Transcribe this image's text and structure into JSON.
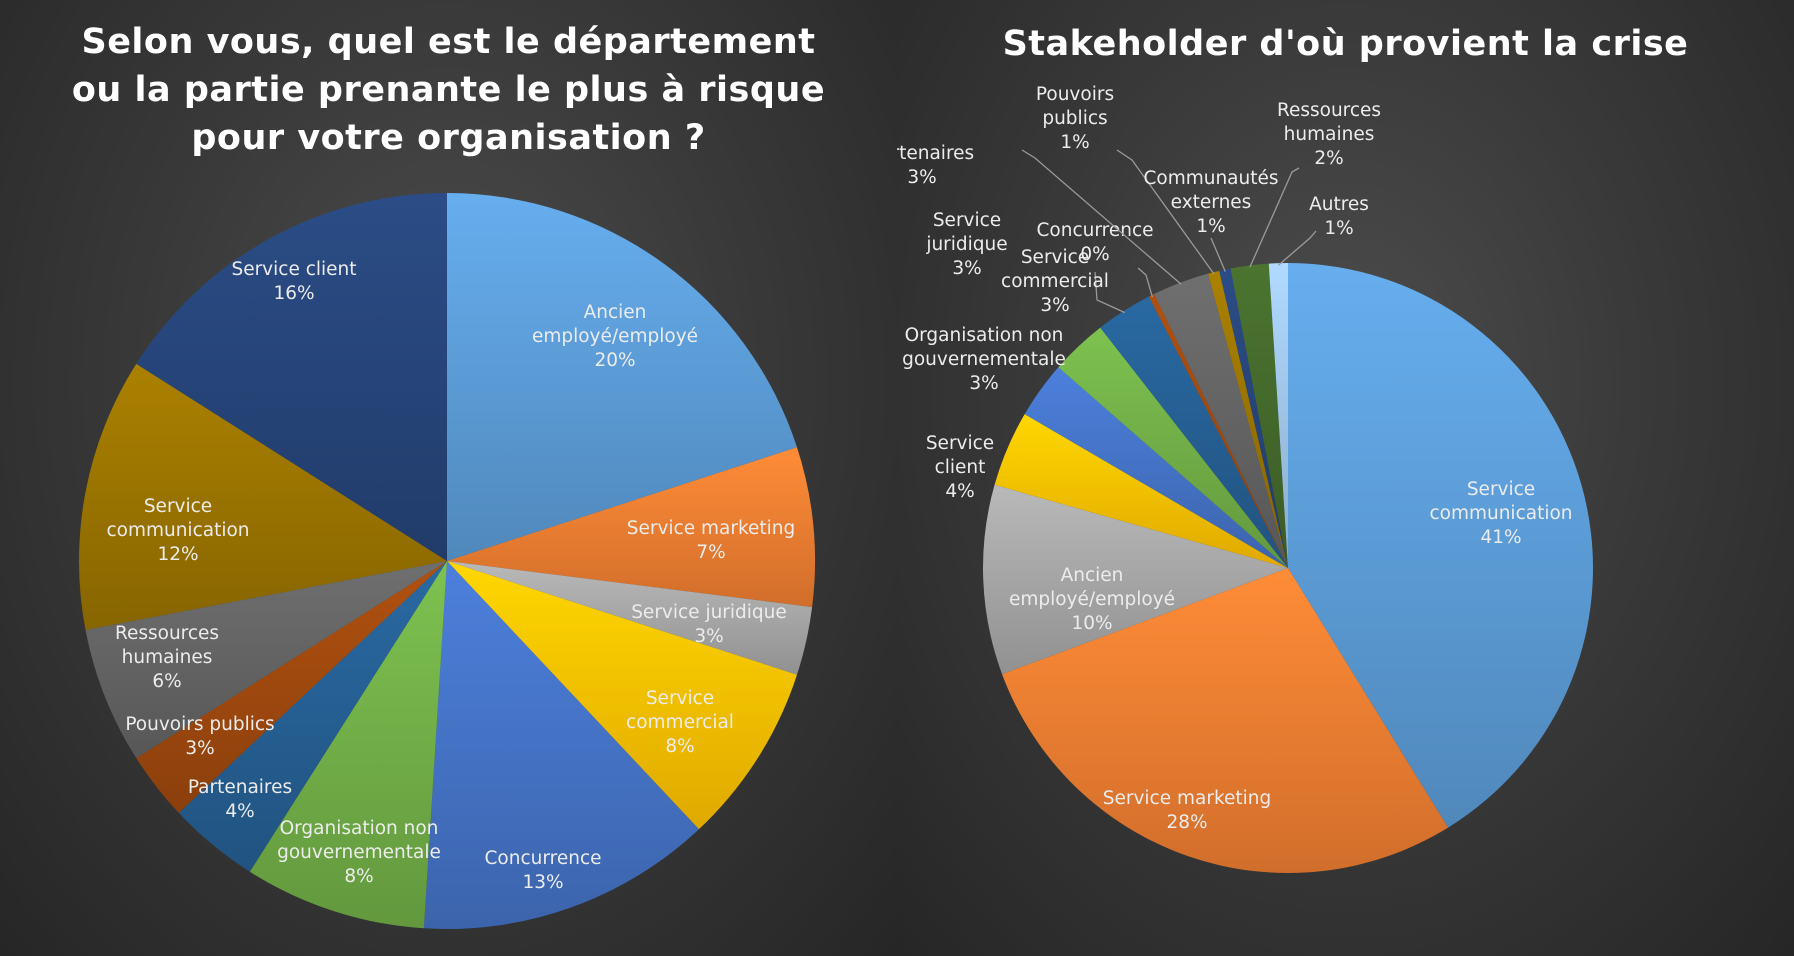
{
  "chart_data": [
    {
      "type": "pie",
      "title": "Selon vous, quel est le département\nou la partie prenante le plus à risque\npour votre organisation ?",
      "categories": [
        "Ancien employé/employé",
        "Service marketing",
        "Service juridique",
        "Service commercial",
        "Concurrence",
        "Organisation non gouvernementale",
        "Partenaires",
        "Pouvoirs publics",
        "Ressources humaines",
        "Service communication",
        "Service client"
      ],
      "label_lines": [
        [
          "Ancien",
          "employé/employé"
        ],
        [
          "Service marketing"
        ],
        [
          "Service juridique"
        ],
        [
          "Service",
          "commercial"
        ],
        [
          "Concurrence"
        ],
        [
          "Organisation non",
          "gouvernementale"
        ],
        [
          "Partenaires"
        ],
        [
          "Pouvoirs publics"
        ],
        [
          "Ressources",
          "humaines"
        ],
        [
          "Service",
          "communication"
        ],
        [
          "Service client"
        ]
      ],
      "values": [
        20,
        7,
        3,
        8,
        13,
        8,
        4,
        3,
        6,
        12,
        16
      ],
      "labels": [
        "20%",
        "7%",
        "3%",
        "8%",
        "13%",
        "8%",
        "4%",
        "3%",
        "6%",
        "12%",
        "16%"
      ],
      "colors": [
        "#5b9bd5",
        "#ed7d31",
        "#a5a5a5",
        "#ffc000",
        "#4472c4",
        "#70ad47",
        "#255e91",
        "#9e480e",
        "#636363",
        "#997300",
        "#264478"
      ],
      "start_angle_deg": 0,
      "legend": "none"
    },
    {
      "type": "pie",
      "title": "Stakeholder d'où provient la crise",
      "categories": [
        "Service communication",
        "Service marketing",
        "Ancien employé/employé",
        "Service client",
        "Organisation non gouvernementale",
        "Service juridique",
        "Service commercial",
        "Concurrence",
        "Partenaires",
        "Pouvoirs publics",
        "Communautés externes",
        "Ressources humaines",
        "Autres"
      ],
      "label_lines": [
        [
          "Service",
          "communication"
        ],
        [
          "Service marketing"
        ],
        [
          "Ancien",
          "employé/employé"
        ],
        [
          "Service",
          "client"
        ],
        [
          "Organisation non",
          "gouvernementale"
        ],
        [
          "Service",
          "juridique"
        ],
        [
          "Service",
          "commercial"
        ],
        [
          "Concurrence"
        ],
        [
          "Partenaires"
        ],
        [
          "Pouvoirs",
          "publics"
        ],
        [
          "Communautés",
          "externes"
        ],
        [
          "Ressources",
          "humaines"
        ],
        [
          "Autres"
        ]
      ],
      "values": [
        41,
        28,
        10,
        4,
        3,
        3,
        3,
        0.3,
        3,
        0.6,
        0.6,
        2,
        1
      ],
      "labels": [
        "41%",
        "28%",
        "10%",
        "4%",
        "3%",
        "3%",
        "3%",
        "0%",
        "3%",
        "1%",
        "1%",
        "2%",
        "1%"
      ],
      "colors": [
        "#5b9bd5",
        "#ed7d31",
        "#a5a5a5",
        "#ffc000",
        "#4472c4",
        "#70ad47",
        "#255e91",
        "#9e480e",
        "#636363",
        "#997300",
        "#264478",
        "#43682b",
        "#9dc3e6"
      ],
      "start_angle_deg": 0,
      "legend": "none"
    }
  ]
}
